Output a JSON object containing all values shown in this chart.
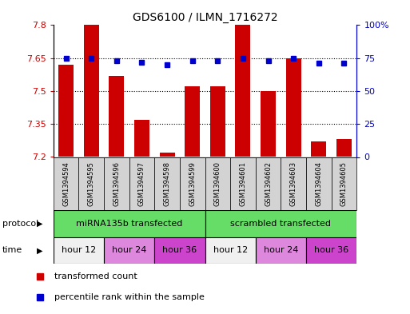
{
  "title": "GDS6100 / ILMN_1716272",
  "samples": [
    "GSM1394594",
    "GSM1394595",
    "GSM1394596",
    "GSM1394597",
    "GSM1394598",
    "GSM1394599",
    "GSM1394600",
    "GSM1394601",
    "GSM1394602",
    "GSM1394603",
    "GSM1394604",
    "GSM1394605"
  ],
  "red_values": [
    7.62,
    7.8,
    7.57,
    7.37,
    7.22,
    7.52,
    7.52,
    7.8,
    7.5,
    7.65,
    7.27,
    7.28
  ],
  "blue_values": [
    75,
    75,
    73,
    72,
    70,
    73,
    73,
    75,
    73,
    75,
    71,
    71
  ],
  "ylim_left": [
    7.2,
    7.8
  ],
  "ylim_right": [
    0,
    100
  ],
  "yticks_left": [
    7.2,
    7.35,
    7.5,
    7.65,
    7.8
  ],
  "yticks_right": [
    0,
    25,
    50,
    75,
    100
  ],
  "ytick_labels_right": [
    "0",
    "25",
    "50",
    "75",
    "100%"
  ],
  "bar_color": "#CC0000",
  "dot_color": "#0000CC",
  "sample_bg_color": "#d3d3d3",
  "proto_color": "#66DD66",
  "proto_ranges": [
    [
      0,
      5
    ],
    [
      6,
      11
    ]
  ],
  "proto_labels": [
    "miRNA135b transfected",
    "scrambled transfected"
  ],
  "time_ranges": [
    [
      0,
      1
    ],
    [
      2,
      3
    ],
    [
      4,
      5
    ],
    [
      6,
      7
    ],
    [
      8,
      9
    ],
    [
      10,
      11
    ]
  ],
  "time_labels": [
    "hour 12",
    "hour 24",
    "hour 36",
    "hour 12",
    "hour 24",
    "hour 36"
  ],
  "time_colors": [
    "#f0f0f0",
    "#DD88DD",
    "#CC44CC",
    "#f0f0f0",
    "#DD88DD",
    "#CC44CC"
  ],
  "legend_items": [
    {
      "label": "transformed count",
      "color": "#CC0000"
    },
    {
      "label": "percentile rank within the sample",
      "color": "#0000CC"
    }
  ],
  "figsize": [
    5.13,
    3.93
  ],
  "dpi": 100
}
